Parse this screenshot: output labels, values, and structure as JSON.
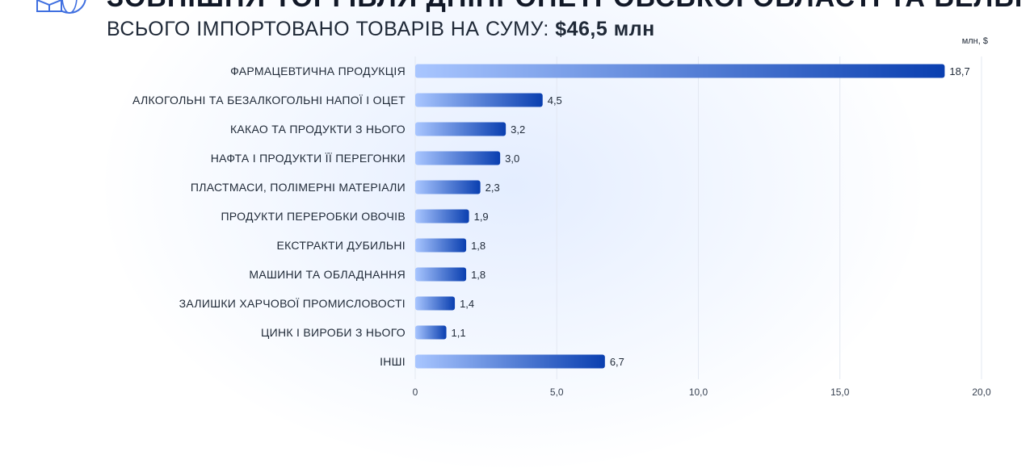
{
  "header": {
    "title": "ЗОВНІШНЯ ТОРГІВЛЯ ДНІПРОПЕТРОВСЬКОЇ ОБЛАСТІ ТА БЕЛЬГІ",
    "subtitle_prefix": "ВСЬОГО ІМПОРТОВАНО ТОВАРІВ НА СУМУ:",
    "subtitle_amount": "$46,5 млн",
    "logo_icon": "box-globe-icon"
  },
  "chart_data": {
    "type": "bar",
    "orientation": "horizontal",
    "unit_label": "млн, $",
    "categories": [
      "ФАРМАЦЕВТИЧНА ПРОДУКЦІЯ",
      "АЛКОГОЛЬНІ ТА БЕЗАЛКОГОЛЬНІ НАПОЇ І ОЦЕТ",
      "КАКАО ТА ПРОДУКТИ З НЬОГО",
      "НАФТА І ПРОДУКТИ ЇЇ ПЕРЕГОНКИ",
      "ПЛАСТМАСИ, ПОЛІМЕРНІ МАТЕРІАЛИ",
      "ПРОДУКТИ ПЕРЕРОБКИ ОВОЧІВ",
      "ЕКСТРАКТИ ДУБИЛЬНІ",
      "МАШИНИ ТА ОБЛАДНАННЯ",
      "ЗАЛИШКИ ХАРЧОВОЇ ПРОМИСЛОВОСТІ",
      "ЦИНК І ВИРОБИ З НЬОГО",
      "ІНШІ"
    ],
    "values": [
      18.7,
      4.5,
      3.2,
      3.0,
      2.3,
      1.9,
      1.8,
      1.8,
      1.4,
      1.1,
      6.7
    ],
    "value_labels": [
      "18,7",
      "4,5",
      "3,2",
      "3,0",
      "2,3",
      "1,9",
      "1,8",
      "1,8",
      "1,4",
      "1,1",
      "6,7"
    ],
    "xlim": [
      0,
      20
    ],
    "xticks": [
      0,
      5,
      10,
      15,
      20
    ],
    "xtick_labels": [
      "0",
      "5,0",
      "10,0",
      "15,0",
      "20,0"
    ],
    "grid": true,
    "bar_gradient": [
      "#a9c6ff",
      "#0a3fb0"
    ]
  }
}
